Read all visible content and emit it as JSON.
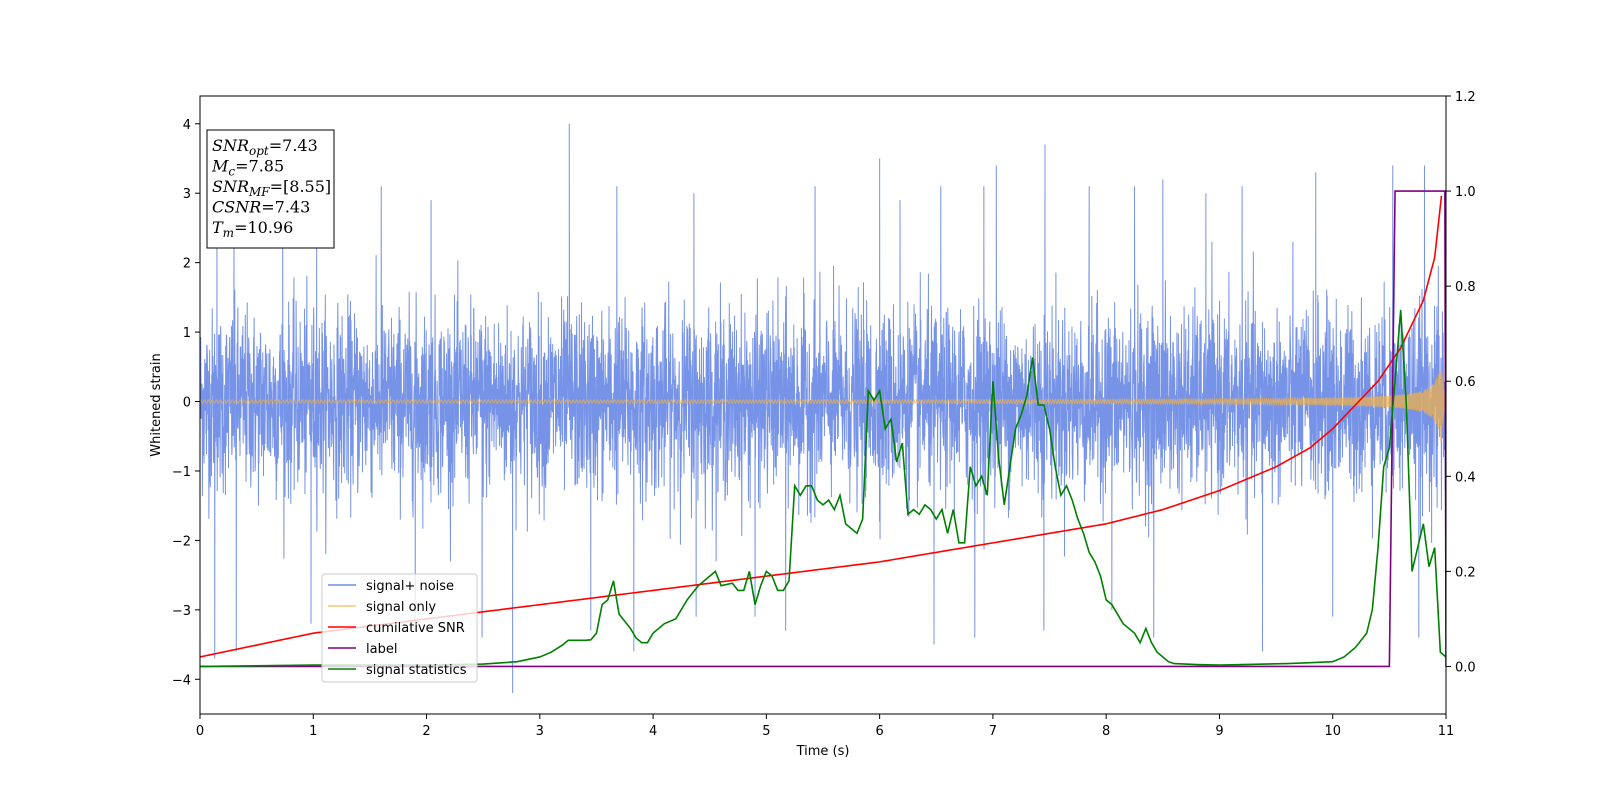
{
  "chart_data": {
    "type": "line",
    "xlabel": "Time (s)",
    "ylabel": "Whitened strain",
    "xlim": [
      0,
      11
    ],
    "ylim": [
      -4.5,
      4.4
    ],
    "y2lim": [
      -0.1,
      1.2
    ],
    "x_ticks": [
      "0",
      "1",
      "2",
      "3",
      "4",
      "5",
      "6",
      "7",
      "8",
      "9",
      "10",
      "11"
    ],
    "y_ticks": [
      "4",
      "3",
      "2",
      "1",
      "0",
      "−1",
      "−2",
      "−3",
      "−4"
    ],
    "y2_ticks": [
      "1.2",
      "1.0",
      "0.8",
      "0.6",
      "0.4",
      "0.2",
      "0.0"
    ],
    "grid": false,
    "legend_position": "lower-left",
    "annotation": {
      "lines": [
        {
          "sym": "SNR",
          "sub": "opt",
          "value": "=7.43"
        },
        {
          "sym": "M",
          "sub": "c",
          "value": "=7.85"
        },
        {
          "sym": "SNR",
          "sub": "MF",
          "value": "=[8.55]"
        },
        {
          "sym": "CSNR",
          "sub": "",
          "value": "=7.43"
        },
        {
          "sym": "T",
          "sub": "m",
          "value": "=10.96"
        }
      ]
    },
    "series": [
      {
        "name": "signal+ noise",
        "color": "#6f8de6",
        "axis": "left",
        "kind": "noise",
        "sigma": 1.05,
        "peaks_x": [
          0.15,
          0.3,
          0.73,
          1.03,
          1.6,
          2.04,
          3.26,
          3.68,
          4.36,
          5.43,
          6.0,
          6.18,
          6.54,
          6.92,
          7.03,
          7.46,
          7.85,
          8.25,
          8.5,
          8.88,
          9.2,
          9.85,
          10.53,
          10.81
        ],
        "peaks_y": [
          2.7,
          2.6,
          3.1,
          2.4,
          3.1,
          2.9,
          4.0,
          3.1,
          3.0,
          3.1,
          3.5,
          2.9,
          3.1,
          3.1,
          3.4,
          3.7,
          3.1,
          3.1,
          3.2,
          3.0,
          3.1,
          3.3,
          3.4,
          3.4
        ],
        "troughs_x": [
          0.13,
          0.32,
          0.98,
          1.9,
          2.49,
          2.76,
          3.45,
          3.83,
          4.38,
          4.9,
          5.17,
          6.48,
          6.84,
          7.45,
          8.05,
          8.42,
          9.38,
          10.0,
          10.76
        ],
        "troughs_y": [
          -3.7,
          -3.6,
          -3.2,
          -3.3,
          -3.4,
          -4.2,
          -3.3,
          -3.6,
          -3.1,
          -3.1,
          -3.3,
          -3.5,
          -3.4,
          -3.3,
          -3.0,
          -3.4,
          -3.6,
          -3.1,
          -3.4
        ]
      },
      {
        "name": "signal only",
        "color": "#f5b041",
        "axis": "left",
        "kind": "chirp",
        "t_merge": 10.96,
        "amp_start": 0.02,
        "amp_peak": 0.65
      },
      {
        "name": "cumilative SNR",
        "color": "#ff0000",
        "axis": "right",
        "x": [
          0,
          1,
          2,
          3,
          4,
          5,
          6,
          7,
          7.5,
          8,
          8.5,
          9,
          9.5,
          9.8,
          10,
          10.2,
          10.4,
          10.6,
          10.8,
          10.9,
          10.96
        ],
        "y": [
          0.02,
          0.07,
          0.1,
          0.13,
          0.16,
          0.19,
          0.22,
          0.26,
          0.28,
          0.3,
          0.33,
          0.37,
          0.42,
          0.46,
          0.5,
          0.55,
          0.6,
          0.67,
          0.77,
          0.86,
          0.99
        ]
      },
      {
        "name": "label",
        "color": "#800080",
        "axis": "right",
        "x": [
          0,
          10.5,
          10.55,
          10.99,
          11.0
        ],
        "y": [
          0,
          0,
          1.0,
          1.0,
          0
        ]
      },
      {
        "name": "signal statistics",
        "color": "#008000",
        "axis": "right",
        "x": [
          0,
          1,
          2,
          2.5,
          2.8,
          2.9,
          3.0,
          3.1,
          3.2,
          3.25,
          3.35,
          3.4,
          3.45,
          3.5,
          3.55,
          3.6,
          3.65,
          3.7,
          3.8,
          3.85,
          3.9,
          3.95,
          4.0,
          4.1,
          4.2,
          4.3,
          4.4,
          4.5,
          4.55,
          4.6,
          4.7,
          4.75,
          4.8,
          4.85,
          4.9,
          4.95,
          5.0,
          5.05,
          5.1,
          5.15,
          5.2,
          5.25,
          5.3,
          5.35,
          5.4,
          5.45,
          5.5,
          5.55,
          5.6,
          5.65,
          5.7,
          5.75,
          5.8,
          5.85,
          5.9,
          5.95,
          6.0,
          6.05,
          6.1,
          6.15,
          6.2,
          6.25,
          6.3,
          6.35,
          6.4,
          6.45,
          6.5,
          6.55,
          6.6,
          6.65,
          6.7,
          6.75,
          6.8,
          6.85,
          6.9,
          6.95,
          7.0,
          7.05,
          7.1,
          7.15,
          7.2,
          7.25,
          7.3,
          7.35,
          7.4,
          7.45,
          7.5,
          7.55,
          7.6,
          7.65,
          7.7,
          7.75,
          7.8,
          7.85,
          7.9,
          7.95,
          8.0,
          8.05,
          8.1,
          8.15,
          8.2,
          8.25,
          8.3,
          8.35,
          8.4,
          8.45,
          8.5,
          8.55,
          8.6,
          8.7,
          8.8,
          9.0,
          9.2,
          9.4,
          9.6,
          9.8,
          10.0,
          10.1,
          10.2,
          10.3,
          10.35,
          10.4,
          10.45,
          10.5,
          10.55,
          10.6,
          10.65,
          10.7,
          10.75,
          10.8,
          10.85,
          10.9,
          10.95,
          11.0
        ],
        "y": [
          0.0,
          0.003,
          0.003,
          0.005,
          0.01,
          0.015,
          0.02,
          0.03,
          0.045,
          0.055,
          0.055,
          0.055,
          0.056,
          0.07,
          0.13,
          0.14,
          0.18,
          0.11,
          0.08,
          0.06,
          0.05,
          0.05,
          0.07,
          0.09,
          0.1,
          0.14,
          0.17,
          0.19,
          0.2,
          0.17,
          0.175,
          0.16,
          0.16,
          0.2,
          0.13,
          0.17,
          0.2,
          0.19,
          0.16,
          0.16,
          0.18,
          0.38,
          0.36,
          0.38,
          0.38,
          0.35,
          0.34,
          0.35,
          0.33,
          0.36,
          0.3,
          0.29,
          0.28,
          0.31,
          0.58,
          0.56,
          0.58,
          0.5,
          0.52,
          0.43,
          0.47,
          0.32,
          0.33,
          0.32,
          0.34,
          0.33,
          0.31,
          0.33,
          0.28,
          0.33,
          0.26,
          0.26,
          0.42,
          0.38,
          0.4,
          0.36,
          0.6,
          0.44,
          0.34,
          0.42,
          0.5,
          0.53,
          0.57,
          0.65,
          0.55,
          0.55,
          0.5,
          0.42,
          0.36,
          0.38,
          0.35,
          0.31,
          0.28,
          0.24,
          0.22,
          0.19,
          0.14,
          0.13,
          0.11,
          0.09,
          0.08,
          0.07,
          0.05,
          0.08,
          0.05,
          0.03,
          0.02,
          0.01,
          0.006,
          0.005,
          0.004,
          0.003,
          0.004,
          0.005,
          0.006,
          0.008,
          0.01,
          0.02,
          0.04,
          0.07,
          0.12,
          0.25,
          0.42,
          0.46,
          0.6,
          0.75,
          0.55,
          0.2,
          0.25,
          0.3,
          0.21,
          0.25,
          0.03,
          0.02
        ],
        "label_note": ""
      }
    ]
  }
}
